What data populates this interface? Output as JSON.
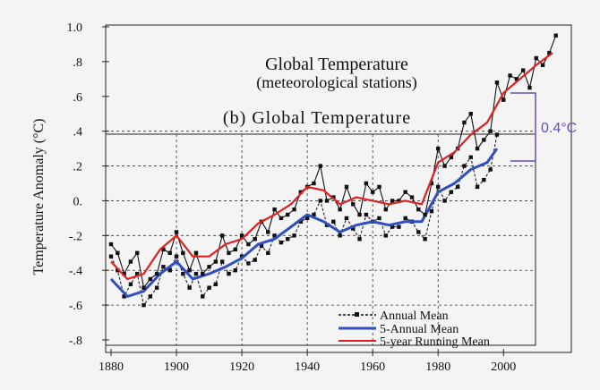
{
  "chart_data": [
    {
      "type": "line",
      "title": "Global Temperature",
      "subtitle": "(meteorological stations)",
      "ylabel": "Temperature Anomaly (°C)",
      "xlabel": "",
      "xlim": [
        1880,
        2018
      ],
      "ylim": [
        -0.8,
        1.0
      ],
      "grid": false,
      "x_ticks": [
        "1880",
        "1900",
        "1920",
        "1940",
        "1960",
        "1980",
        "2000"
      ],
      "y_ticks": [
        {
          "v": 1.0,
          "label": "1.0"
        },
        {
          "v": 0.8,
          "label": ".8"
        },
        {
          "v": 0.6,
          "label": ".6"
        },
        {
          "v": 0.4,
          "label": ".4"
        },
        {
          "v": 0.2,
          "label": ".2"
        },
        {
          "v": 0.0,
          "label": "0."
        },
        {
          "v": -0.2,
          "label": "-.2"
        },
        {
          "v": -0.4,
          "label": "-.4"
        },
        {
          "v": -0.6,
          "label": "-.6"
        },
        {
          "v": -0.8,
          "label": "-.8"
        }
      ],
      "annotation": "0.4°C",
      "series": [
        {
          "name": "Annual Mean",
          "color": "#111111",
          "style": "black-line-square-markers",
          "x": [
            1880,
            1882,
            1884,
            1886,
            1888,
            1890,
            1892,
            1894,
            1896,
            1898,
            1900,
            1902,
            1904,
            1906,
            1908,
            1910,
            1912,
            1914,
            1916,
            1918,
            1920,
            1922,
            1924,
            1926,
            1928,
            1930,
            1932,
            1934,
            1936,
            1938,
            1940,
            1942,
            1944,
            1946,
            1948,
            1950,
            1952,
            1954,
            1956,
            1958,
            1960,
            1962,
            1964,
            1966,
            1968,
            1970,
            1972,
            1974,
            1976,
            1978,
            1980,
            1982,
            1984,
            1986,
            1988,
            1990,
            1992,
            1994,
            1996,
            1998,
            2000,
            2002,
            2004,
            2006,
            2008,
            2010,
            2012,
            2014,
            2016
          ],
          "values": [
            -0.25,
            -0.3,
            -0.42,
            -0.35,
            -0.3,
            -0.5,
            -0.45,
            -0.42,
            -0.28,
            -0.3,
            -0.18,
            -0.3,
            -0.4,
            -0.3,
            -0.42,
            -0.38,
            -0.35,
            -0.2,
            -0.3,
            -0.28,
            -0.2,
            -0.25,
            -0.22,
            -0.12,
            -0.18,
            -0.05,
            -0.1,
            -0.08,
            -0.05,
            0.05,
            0.08,
            0.1,
            0.2,
            0.0,
            0.02,
            -0.05,
            0.08,
            -0.02,
            -0.08,
            0.1,
            0.05,
            0.08,
            -0.05,
            0.0,
            0.0,
            0.05,
            0.02,
            -0.05,
            -0.08,
            0.1,
            0.3,
            0.2,
            0.25,
            0.3,
            0.45,
            0.5,
            0.3,
            0.35,
            0.4,
            0.68,
            0.58,
            0.72,
            0.7,
            0.75,
            0.65,
            0.82,
            0.78,
            0.85,
            0.95
          ]
        },
        {
          "name": "5-year Running Mean",
          "color": "#e02020",
          "x": [
            1880,
            1885,
            1890,
            1895,
            1900,
            1905,
            1910,
            1915,
            1920,
            1925,
            1930,
            1935,
            1940,
            1945,
            1950,
            1955,
            1960,
            1965,
            1970,
            1975,
            1980,
            1985,
            1990,
            1995,
            2000,
            2005,
            2010,
            2015
          ],
          "values": [
            -0.35,
            -0.45,
            -0.42,
            -0.28,
            -0.2,
            -0.32,
            -0.32,
            -0.25,
            -0.22,
            -0.13,
            -0.08,
            -0.02,
            0.08,
            0.06,
            -0.02,
            0.02,
            0.0,
            -0.02,
            0.0,
            -0.02,
            0.22,
            0.28,
            0.38,
            0.45,
            0.62,
            0.7,
            0.78,
            0.85
          ]
        }
      ]
    },
    {
      "type": "line",
      "title": "(b) Global Temperature",
      "xlim": [
        1880,
        2000
      ],
      "ylim": [
        -0.8,
        0.6
      ],
      "grid": true,
      "legend": "bottom-right",
      "series": [
        {
          "name": "Annual Mean",
          "color": "#111111",
          "style": "black-dashed-square-markers",
          "x": [
            1880,
            1882,
            1884,
            1886,
            1888,
            1890,
            1892,
            1894,
            1896,
            1898,
            1900,
            1902,
            1904,
            1906,
            1908,
            1910,
            1912,
            1914,
            1916,
            1918,
            1920,
            1922,
            1924,
            1926,
            1928,
            1930,
            1932,
            1934,
            1936,
            1938,
            1940,
            1942,
            1944,
            1946,
            1948,
            1950,
            1952,
            1954,
            1956,
            1958,
            1960,
            1962,
            1964,
            1966,
            1968,
            1970,
            1972,
            1974,
            1976,
            1978,
            1980,
            1982,
            1984,
            1986,
            1988,
            1990,
            1992,
            1994,
            1996,
            1998
          ],
          "values": [
            -0.32,
            -0.4,
            -0.55,
            -0.48,
            -0.42,
            -0.6,
            -0.55,
            -0.5,
            -0.38,
            -0.4,
            -0.32,
            -0.42,
            -0.5,
            -0.42,
            -0.55,
            -0.5,
            -0.48,
            -0.35,
            -0.42,
            -0.4,
            -0.32,
            -0.36,
            -0.34,
            -0.26,
            -0.3,
            -0.2,
            -0.24,
            -0.22,
            -0.2,
            -0.12,
            -0.1,
            -0.08,
            0.0,
            -0.14,
            -0.12,
            -0.2,
            -0.1,
            -0.16,
            -0.22,
            -0.08,
            -0.12,
            -0.1,
            -0.2,
            -0.15,
            -0.15,
            -0.1,
            -0.12,
            -0.18,
            -0.22,
            -0.06,
            0.08,
            0.0,
            0.05,
            0.08,
            0.2,
            0.25,
            0.08,
            0.12,
            0.18,
            0.38
          ]
        },
        {
          "name": "5-Annual Mean",
          "color": "#3050c0",
          "x": [
            1880,
            1885,
            1890,
            1895,
            1900,
            1905,
            1910,
            1915,
            1920,
            1925,
            1930,
            1935,
            1940,
            1945,
            1950,
            1955,
            1960,
            1965,
            1970,
            1975,
            1980,
            1985,
            1990,
            1995,
            1998
          ],
          "values": [
            -0.45,
            -0.55,
            -0.52,
            -0.42,
            -0.35,
            -0.45,
            -0.42,
            -0.38,
            -0.33,
            -0.25,
            -0.22,
            -0.15,
            -0.08,
            -0.12,
            -0.18,
            -0.14,
            -0.12,
            -0.14,
            -0.12,
            -0.12,
            0.05,
            0.1,
            0.18,
            0.22,
            0.3
          ]
        }
      ]
    }
  ]
}
